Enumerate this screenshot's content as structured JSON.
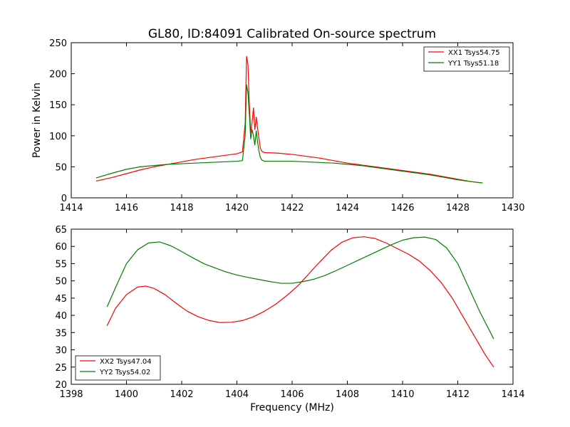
{
  "chart_data": [
    {
      "type": "line",
      "title": "GL80, ID:84091 Calibrated On-source spectrum",
      "xlabel": "",
      "ylabel": "Power in Kelvin",
      "xlim": [
        1414,
        1430
      ],
      "ylim": [
        0,
        250
      ],
      "xticks": [
        1414,
        1416,
        1418,
        1420,
        1422,
        1424,
        1426,
        1428,
        1430
      ],
      "yticks": [
        0,
        50,
        100,
        150,
        200,
        250
      ],
      "legend_position": "upper-right",
      "series": [
        {
          "name": "XX1 Tsys54.75",
          "color": "#ff0000",
          "x": [
            1414.9,
            1415.5,
            1416,
            1416.5,
            1417,
            1417.5,
            1418,
            1418.5,
            1419,
            1419.5,
            1420,
            1420.2,
            1420.3,
            1420.35,
            1420.4,
            1420.45,
            1420.5,
            1420.55,
            1420.6,
            1420.65,
            1420.7,
            1420.75,
            1420.8,
            1420.85,
            1420.9,
            1421,
            1421.5,
            1422,
            1422.5,
            1423,
            1423.5,
            1424,
            1424.5,
            1425,
            1425.5,
            1426,
            1426.5,
            1427,
            1427.5,
            1428,
            1428.5,
            1428.9
          ],
          "y": [
            27,
            33,
            39,
            45,
            50,
            54,
            58,
            62,
            65,
            68,
            71,
            74,
            120,
            228,
            215,
            150,
            105,
            122,
            145,
            110,
            130,
            112,
            95,
            80,
            75,
            73,
            72,
            70,
            67,
            64,
            60,
            56,
            53,
            50,
            47,
            44,
            41,
            38,
            34,
            30,
            26,
            24
          ]
        },
        {
          "name": "YY1 Tsys51.18",
          "color": "#008000",
          "x": [
            1414.9,
            1415.5,
            1416,
            1416.5,
            1417,
            1417.5,
            1418,
            1418.5,
            1419,
            1419.5,
            1420,
            1420.2,
            1420.3,
            1420.35,
            1420.4,
            1420.45,
            1420.5,
            1420.55,
            1420.6,
            1420.65,
            1420.7,
            1420.75,
            1420.8,
            1420.85,
            1420.9,
            1421,
            1421.5,
            1422,
            1422.5,
            1423,
            1423.5,
            1424,
            1424.5,
            1425,
            1425.5,
            1426,
            1426.5,
            1427,
            1427.5,
            1428,
            1428.5,
            1428.9
          ],
          "y": [
            32,
            40,
            46,
            50,
            52,
            54,
            55,
            56,
            57,
            58,
            59,
            60,
            100,
            182,
            170,
            135,
            95,
            110,
            100,
            85,
            108,
            90,
            75,
            65,
            61,
            59,
            59,
            59,
            58,
            57,
            56,
            54,
            52,
            49,
            46,
            43,
            40,
            37,
            33,
            29,
            26,
            24
          ]
        }
      ]
    },
    {
      "type": "line",
      "title": "",
      "xlabel": "Frequency (MHz)",
      "ylabel": "",
      "xlim": [
        1398,
        1414
      ],
      "ylim": [
        20,
        65
      ],
      "xticks": [
        1398,
        1400,
        1402,
        1404,
        1406,
        1408,
        1410,
        1412,
        1414
      ],
      "yticks": [
        20,
        25,
        30,
        35,
        40,
        45,
        50,
        55,
        60,
        65
      ],
      "legend_position": "lower-left",
      "series": [
        {
          "name": "XX2 Tsys47.04",
          "color": "#ff0000",
          "x": [
            1399.3,
            1399.6,
            1400,
            1400.4,
            1400.7,
            1401,
            1401.4,
            1401.8,
            1402.2,
            1402.6,
            1403,
            1403.4,
            1403.8,
            1404.2,
            1404.6,
            1405,
            1405.4,
            1405.8,
            1406.2,
            1406.6,
            1407,
            1407.4,
            1407.8,
            1408.2,
            1408.6,
            1409,
            1409.4,
            1409.8,
            1410.2,
            1410.6,
            1411,
            1411.4,
            1411.8,
            1412.2,
            1412.6,
            1413,
            1413.3
          ],
          "y": [
            37,
            42,
            46,
            48.2,
            48.5,
            47.8,
            46,
            43.5,
            41.2,
            39.6,
            38.5,
            37.9,
            38,
            38.5,
            39.6,
            41.2,
            43.2,
            45.7,
            48.5,
            52,
            55.5,
            58.8,
            61.2,
            62.5,
            62.8,
            62.3,
            61,
            59.4,
            57.8,
            55.8,
            53,
            49.5,
            45,
            39.5,
            34,
            28.5,
            25
          ]
        },
        {
          "name": "YY2 Tsys54.02",
          "color": "#008000",
          "x": [
            1399.3,
            1399.6,
            1400,
            1400.4,
            1400.8,
            1401.2,
            1401.6,
            1402,
            1402.4,
            1402.8,
            1403.2,
            1403.6,
            1404,
            1404.4,
            1404.8,
            1405.2,
            1405.6,
            1406,
            1406.4,
            1406.8,
            1407.2,
            1407.6,
            1408,
            1408.4,
            1408.8,
            1409.2,
            1409.6,
            1410,
            1410.4,
            1410.8,
            1411.2,
            1411.6,
            1412,
            1412.4,
            1412.8,
            1413.3
          ],
          "y": [
            42.5,
            48,
            55,
            59,
            61,
            61.3,
            60.2,
            58.5,
            56.7,
            55,
            53.8,
            52.6,
            51.7,
            51,
            50.4,
            49.8,
            49.3,
            49.3,
            49.8,
            50.5,
            51.6,
            53,
            54.5,
            56,
            57.5,
            59,
            60.5,
            61.8,
            62.5,
            62.7,
            62,
            59.5,
            55,
            48,
            41,
            33.2
          ]
        }
      ]
    }
  ]
}
